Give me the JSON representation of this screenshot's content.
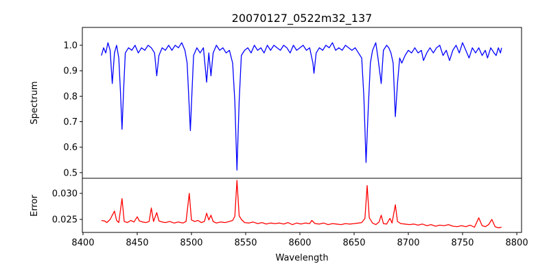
{
  "chart_data": [
    {
      "type": "line",
      "title": "20070127_0522m32_137",
      "xlabel": "",
      "ylabel": "Spectrum",
      "xlim": [
        8399.4,
        8804.4
      ],
      "ylim": [
        0.478,
        1.07
      ],
      "yticks": [
        "0.5",
        "0.6",
        "0.7",
        "0.8",
        "0.9",
        "1.0"
      ],
      "ytick_values": [
        0.5,
        0.6,
        0.7,
        0.8,
        0.9,
        1.0
      ],
      "color": "#0000ff",
      "grid": false,
      "x": [
        8417,
        8419,
        8421,
        8423,
        8425,
        8427,
        8429,
        8431,
        8433,
        8434.5,
        8436,
        8437.5,
        8439,
        8442,
        8445,
        8448,
        8451,
        8454,
        8457,
        8460,
        8463,
        8466,
        8468,
        8470,
        8473,
        8476,
        8479,
        8482,
        8485,
        8488,
        8491,
        8494,
        8496,
        8497.5,
        8499,
        8500.5,
        8502,
        8505,
        8508,
        8511,
        8514,
        8516,
        8518,
        8520,
        8523,
        8526,
        8529,
        8532,
        8535,
        8538,
        8540,
        8542,
        8544,
        8546,
        8549,
        8552,
        8555,
        8558,
        8561,
        8564,
        8567,
        8570,
        8573,
        8576,
        8579,
        8582,
        8585,
        8588,
        8591,
        8594,
        8597,
        8600,
        8603,
        8606,
        8609,
        8612,
        8613,
        8615,
        8618,
        8621,
        8624,
        8627,
        8630,
        8633,
        8636,
        8639,
        8642,
        8645,
        8648,
        8651,
        8654,
        8657,
        8659,
        8661,
        8663,
        8665,
        8667,
        8670,
        8672,
        8675,
        8677,
        8680,
        8682,
        8684,
        8686,
        8688,
        8690,
        8692,
        8694,
        8697,
        8700,
        8703,
        8706,
        8709,
        8712,
        8714,
        8717,
        8720,
        8723,
        8726,
        8729,
        8732,
        8735,
        8738,
        8741,
        8744,
        8747,
        8750,
        8753,
        8756,
        8759,
        8762,
        8765,
        8768,
        8771,
        8773,
        8776,
        8779,
        8781,
        8783,
        8785,
        8786
      ],
      "y": [
        0.96,
        0.99,
        0.97,
        1.01,
        0.98,
        0.85,
        0.97,
        1.0,
        0.95,
        0.82,
        0.67,
        0.83,
        0.97,
        0.99,
        0.98,
        1.0,
        0.97,
        0.99,
        0.98,
        1.0,
        0.99,
        0.97,
        0.88,
        0.96,
        0.99,
        0.98,
        1.0,
        0.98,
        1.0,
        0.99,
        1.01,
        0.98,
        0.93,
        0.8,
        0.665,
        0.82,
        0.96,
        0.99,
        0.97,
        0.99,
        0.855,
        0.97,
        0.88,
        0.97,
        1.0,
        0.98,
        0.99,
        0.97,
        0.98,
        0.93,
        0.78,
        0.51,
        0.78,
        0.96,
        0.98,
        0.99,
        0.97,
        1.0,
        0.98,
        0.99,
        0.97,
        1.0,
        0.98,
        1.0,
        0.99,
        0.98,
        1.0,
        0.99,
        0.97,
        1.0,
        0.98,
        0.99,
        1.0,
        0.98,
        0.99,
        0.93,
        0.89,
        0.97,
        0.99,
        0.98,
        1.0,
        0.99,
        1.01,
        0.98,
        0.99,
        0.98,
        1.0,
        0.99,
        0.98,
        0.99,
        0.97,
        0.95,
        0.8,
        0.54,
        0.75,
        0.93,
        0.98,
        1.01,
        0.95,
        0.85,
        0.98,
        1.0,
        0.99,
        0.97,
        0.93,
        0.72,
        0.85,
        0.95,
        0.93,
        0.96,
        0.98,
        0.97,
        0.99,
        0.97,
        0.98,
        0.94,
        0.97,
        0.99,
        0.97,
        0.99,
        1.0,
        0.96,
        0.98,
        0.94,
        0.98,
        1.0,
        0.97,
        1.01,
        0.98,
        0.95,
        0.99,
        0.97,
        0.99,
        0.96,
        0.98,
        0.95,
        0.99,
        0.97,
        0.96,
        0.99,
        0.97,
        0.99
      ]
    },
    {
      "type": "line",
      "title": "",
      "xlabel": "Wavelength",
      "ylabel": "Error",
      "xlim": [
        8399.4,
        8804.4
      ],
      "ylim": [
        0.0225,
        0.0329
      ],
      "xticks": [
        "8400",
        "8450",
        "8500",
        "8550",
        "8600",
        "8650",
        "8700",
        "8750",
        "8800"
      ],
      "xtick_values": [
        8400,
        8450,
        8500,
        8550,
        8600,
        8650,
        8700,
        8750,
        8800
      ],
      "yticks": [
        "0.025",
        "0.030"
      ],
      "ytick_values": [
        0.025,
        0.03
      ],
      "color": "#ff0000",
      "grid": false,
      "x": [
        8417,
        8420,
        8422,
        8425,
        8427,
        8429,
        8431,
        8433,
        8436,
        8438,
        8441,
        8444,
        8447,
        8450,
        8452,
        8455,
        8458,
        8461,
        8463,
        8465,
        8468,
        8470,
        8473,
        8476,
        8480,
        8484,
        8488,
        8492,
        8495,
        8498,
        8500,
        8503,
        8506,
        8509,
        8512,
        8514,
        8516,
        8518,
        8520,
        8523,
        8527,
        8531,
        8535,
        8538,
        8540,
        8542,
        8544,
        8546,
        8549,
        8553,
        8557,
        8561,
        8565,
        8569,
        8573,
        8577,
        8581,
        8585,
        8589,
        8593,
        8597,
        8601,
        8605,
        8609,
        8611,
        8614,
        8618,
        8622,
        8626,
        8630,
        8634,
        8638,
        8642,
        8646,
        8650,
        8654,
        8657,
        8660,
        8662,
        8664,
        8667,
        8670,
        8673,
        8675,
        8677,
        8680,
        8683,
        8685,
        8688,
        8690,
        8693,
        8697,
        8701,
        8705,
        8709,
        8713,
        8717,
        8721,
        8725,
        8729,
        8733,
        8737,
        8741,
        8745,
        8749,
        8753,
        8757,
        8761,
        8765,
        8768,
        8771,
        8774,
        8777,
        8780,
        8783,
        8786
      ],
      "y": [
        0.0248,
        0.0247,
        0.0244,
        0.025,
        0.0258,
        0.0266,
        0.0248,
        0.0244,
        0.029,
        0.0246,
        0.0244,
        0.0248,
        0.0245,
        0.0255,
        0.0247,
        0.0245,
        0.0244,
        0.0246,
        0.0272,
        0.0246,
        0.0263,
        0.0247,
        0.0245,
        0.0244,
        0.0246,
        0.0243,
        0.0245,
        0.0243,
        0.0246,
        0.03,
        0.0249,
        0.0246,
        0.0248,
        0.0244,
        0.0246,
        0.0262,
        0.0249,
        0.0258,
        0.0246,
        0.0243,
        0.0245,
        0.0244,
        0.0246,
        0.0248,
        0.0256,
        0.0325,
        0.0257,
        0.025,
        0.0244,
        0.0243,
        0.0245,
        0.0242,
        0.0244,
        0.0241,
        0.0243,
        0.0242,
        0.0243,
        0.0241,
        0.0244,
        0.024,
        0.0243,
        0.0241,
        0.0243,
        0.0242,
        0.0248,
        0.0242,
        0.0241,
        0.0243,
        0.024,
        0.0242,
        0.0241,
        0.024,
        0.0242,
        0.0241,
        0.0242,
        0.0243,
        0.0244,
        0.0252,
        0.0315,
        0.0253,
        0.0243,
        0.024,
        0.0245,
        0.0258,
        0.0242,
        0.0241,
        0.0252,
        0.0243,
        0.0278,
        0.0246,
        0.0242,
        0.0241,
        0.024,
        0.0241,
        0.0239,
        0.0241,
        0.0238,
        0.024,
        0.0237,
        0.0239,
        0.0238,
        0.024,
        0.0237,
        0.0236,
        0.0238,
        0.0236,
        0.0239,
        0.0235,
        0.0253,
        0.0238,
        0.0236,
        0.024,
        0.025,
        0.0236,
        0.0234,
        0.0235
      ]
    }
  ]
}
